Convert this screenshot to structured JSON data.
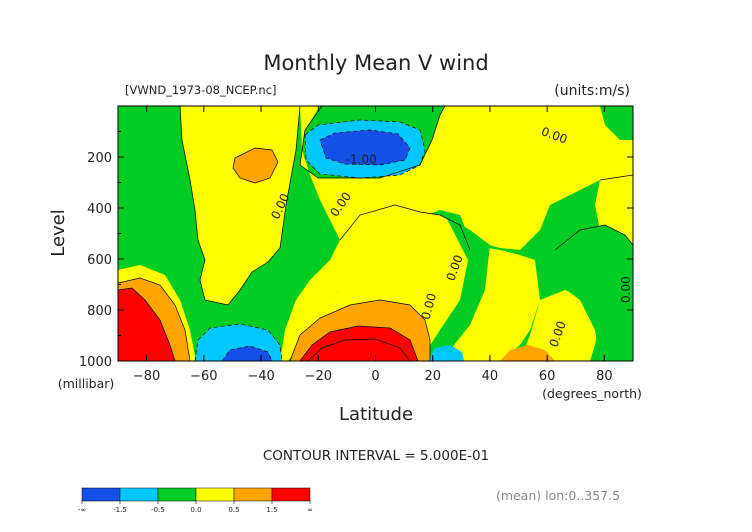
{
  "title": "Monthly Mean V wind",
  "file_label": "[VWND_1973-08_NCEP.nc]",
  "units_label": "(units:m/s)",
  "ylabel": "Level",
  "y_unit": "(millibar)",
  "xlabel": "Latitude",
  "x_unit": "(degrees_north)",
  "contour_interval": "CONTOUR INTERVAL = 5.000E-01",
  "averaging_note": "(mean) lon:0..357.5",
  "colors": {
    "lt_neg1_5": "#1450e6",
    "neg1_5_to_neg1": "#00b4f0",
    "neg1_to_neg0_5": "#00c8ff",
    "neg0_5_to_0": "#00cc22",
    "0_to_0_5": "#ffff00",
    "0_5_to_1_5": "#ffa500",
    "gt_1_5": "#ff0000"
  },
  "chart_data": {
    "type": "heatmap",
    "title": "Monthly Mean V wind",
    "xlabel": "Latitude",
    "ylabel": "Level",
    "xlim": [
      -90,
      90
    ],
    "ylim": [
      1000,
      0
    ],
    "x_ticks": [
      -80,
      -60,
      -40,
      -20,
      0,
      20,
      40,
      60,
      80
    ],
    "x_tick_labels": [
      "−80",
      "−60",
      "−40",
      "−20",
      "0",
      "20",
      "40",
      "60",
      "80"
    ],
    "y_ticks": [
      200,
      400,
      600,
      800,
      1000
    ],
    "y_tick_labels": [
      "200",
      "400",
      "600",
      "800",
      "1000"
    ],
    "contour_labels": [
      {
        "text": "0.00",
        "x": 62,
        "y": 130
      },
      {
        "text": "-1.00",
        "x": -5,
        "y": 225
      },
      {
        "text": "0.00",
        "x": -32,
        "y": 400
      },
      {
        "text": "0.00",
        "x": -11,
        "y": 395
      },
      {
        "text": "0.00",
        "x": 29,
        "y": 640
      },
      {
        "text": "0.00",
        "x": 20,
        "y": 790
      },
      {
        "text": "0.00",
        "x": 65,
        "y": 900
      },
      {
        "text": "0.00",
        "x": 89,
        "y": 720
      }
    ],
    "colorbar": {
      "labels": [
        "-∞",
        "-1.5",
        "-0.5",
        "0.0",
        "0.5",
        "1.5",
        "∞"
      ],
      "colors": [
        "#1450e6",
        "#00c8ff",
        "#00cc22",
        "#ffff00",
        "#ffa500",
        "#ff0000"
      ]
    }
  }
}
